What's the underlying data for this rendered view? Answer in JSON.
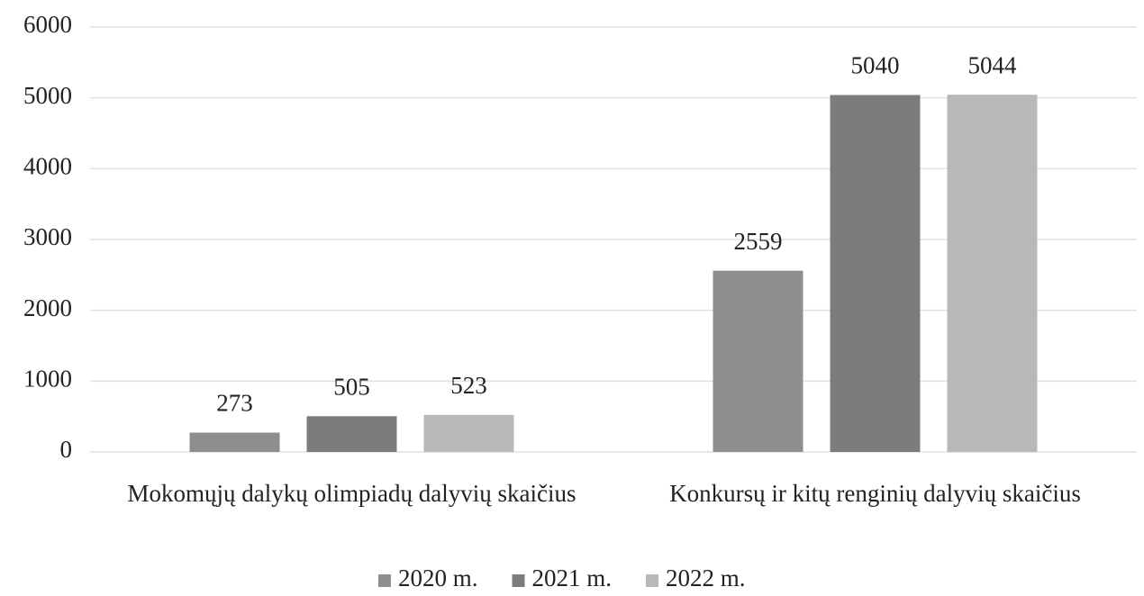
{
  "chart_data": {
    "type": "bar",
    "categories": [
      "Mokomųjų dalykų olimpiadų dalyvių skaičius",
      "Konkursų ir kitų renginių dalyvių skaičius"
    ],
    "series": [
      {
        "name": "2020 m.",
        "color": "#8e8e8e",
        "values": [
          273,
          2559
        ]
      },
      {
        "name": "2021 m.",
        "color": "#7c7c7c",
        "values": [
          505,
          5040
        ]
      },
      {
        "name": "2022 m.",
        "color": "#b8b8b8",
        "values": [
          523,
          5044
        ]
      }
    ],
    "ylim": [
      0,
      6000
    ],
    "yticks": [
      0,
      1000,
      2000,
      3000,
      4000,
      5000,
      6000
    ],
    "grid": true,
    "legend": "bottom"
  }
}
